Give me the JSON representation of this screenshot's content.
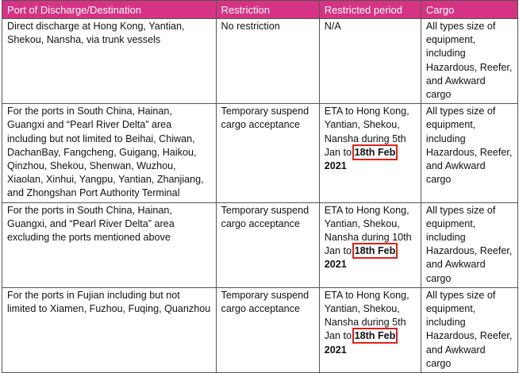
{
  "headers": [
    "Port of Discharge/Destination",
    "Restriction",
    "Restricted period",
    "Cargo"
  ],
  "rows": [
    {
      "port": "Direct discharge at Hong Kong, Yantian, Shekou, Nansha, via trunk vessels",
      "restriction": "No restriction",
      "period": "N/A",
      "cargo": "All types size of equipment, including Hazardous, Reefer, and Awkward cargo"
    },
    {
      "port": "For the ports in South China, Hainan, Guangxi and “Pearl River Delta” area including but not limited to Beihai, Chiwan, DachanBay, Fangcheng, Guigang, Haikou, Qinzhou, Shekou, Shenwan, Wuzhou, Xiaolan, Xinhui, Yangpu, Yantian, Zhanjiang, and Zhongshan Port Authority Terminal",
      "restriction": "Temporary suspend cargo acceptance",
      "period_prefix": "ETA to Hong Kong, Yantian, Shekou, Nansha during 5th Jan to",
      "period_highlight": "18th Feb",
      "period_year": "2021",
      "cargo": "All types size of equipment, including Hazardous, Reefer, and Awkward cargo"
    },
    {
      "port": "For the ports in South China, Hainan, Guangxi, and “Pearl River Delta” area excluding the ports mentioned above",
      "restriction": "Temporary suspend cargo acceptance",
      "period_prefix": "ETA to Hong Kong, Yantian, Shekou, Nansha during 10th Jan to",
      "period_highlight": "18th Feb",
      "period_year": "2021",
      "cargo": "All types size of equipment, including Hazardous, Reefer, and Awkward cargo"
    },
    {
      "port": "For the ports in Fujian including but not limited to Xiamen, Fuzhou, Fuqing, Quanzhou",
      "restriction": "Temporary suspend cargo acceptance",
      "period_prefix": "ETA to Hong Kong, Yantian, Shekou, Nansha during 5th Jan to",
      "period_highlight": "18th Feb",
      "period_year": "2021",
      "cargo": "All types size of equipment, including Hazardous, Reefer, and Awkward cargo"
    }
  ],
  "colors": {
    "header_bg": "#d63384",
    "highlight_border": "#e0201b"
  }
}
